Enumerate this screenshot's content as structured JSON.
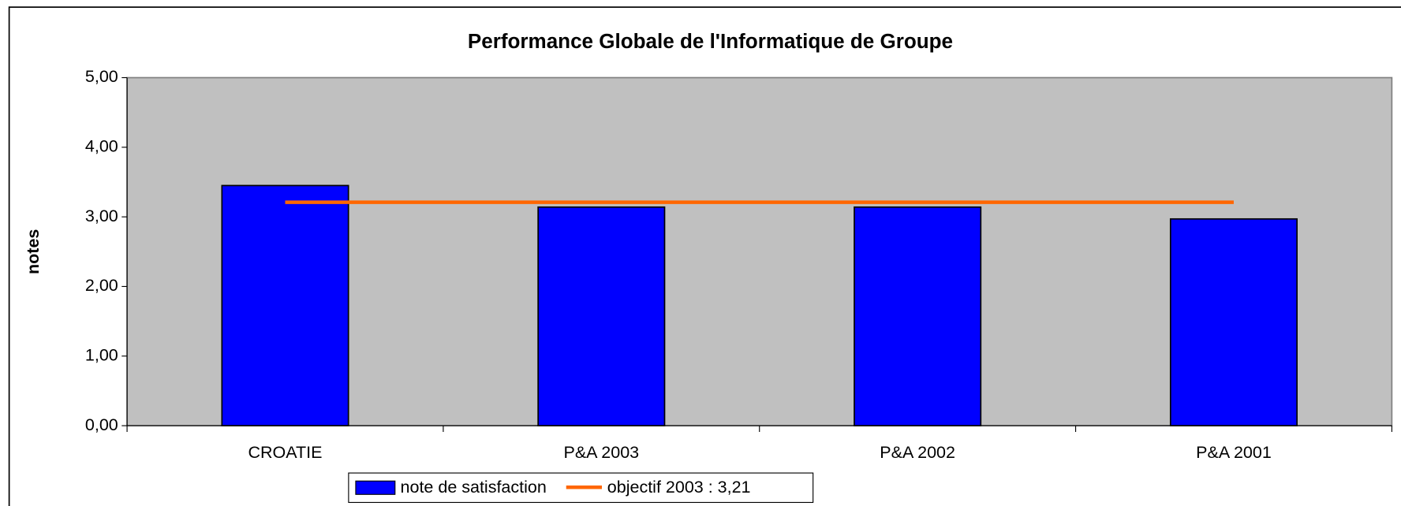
{
  "chart_data": {
    "type": "bar",
    "title": "Performance Globale de l'Informatique de Groupe",
    "y_label": "notes",
    "categories": [
      "CROATIE",
      "P&A 2003",
      "P&A 2002",
      "P&A 2001"
    ],
    "series": [
      {
        "name": "note de satisfaction",
        "type": "bar",
        "color": "#0000ff",
        "values": [
          3.45,
          3.14,
          3.14,
          2.97
        ]
      },
      {
        "name": "objectif 2003 : 3,21",
        "type": "line",
        "color": "#ff6600",
        "values": [
          3.21,
          3.21,
          3.21,
          3.21
        ]
      }
    ],
    "ylim": [
      0,
      5
    ],
    "yticks": [
      {
        "value": 0,
        "label": "0,00"
      },
      {
        "value": 1,
        "label": "1,00"
      },
      {
        "value": 2,
        "label": "2,00"
      },
      {
        "value": 3,
        "label": "3,00"
      },
      {
        "value": 4,
        "label": "4,00"
      },
      {
        "value": 5,
        "label": "5,00"
      }
    ],
    "plot_background": "#c0c0c0",
    "legend": "bottom"
  }
}
